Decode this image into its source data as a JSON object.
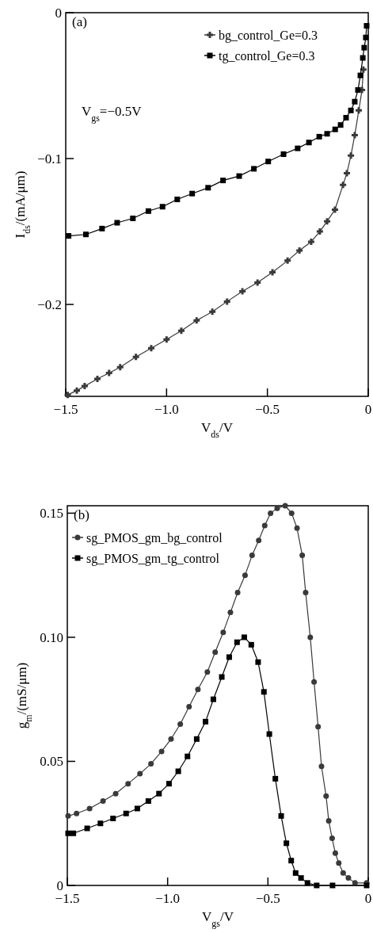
{
  "chart_data": [
    {
      "type": "line",
      "xlabel": "V$_{ds}$/V",
      "ylabel": "I$_{ds}$/(mA/μm)",
      "annotations": [
        "(a)",
        "V$_{gs}$=−0.5V"
      ],
      "xlim": [
        -1.5,
        0
      ],
      "ylim": [
        -0.263,
        0
      ],
      "xticks": [
        {
          "value": -1.5,
          "label": "−1.5"
        },
        {
          "value": -1.0,
          "label": "−1.0"
        },
        {
          "value": -0.5,
          "label": "−0.5"
        },
        {
          "value": 0,
          "label": "0"
        }
      ],
      "yticks": [
        {
          "value": 0,
          "label": "0"
        },
        {
          "value": -0.1,
          "label": "−0.1"
        },
        {
          "value": -0.2,
          "label": "−0.2"
        }
      ],
      "legend": "top right",
      "grid": false,
      "line_style": "solid",
      "series": [
        {
          "name": "bg_control_Ge=0.3",
          "color": "#3a3a3a",
          "marker": "cross",
          "x": [
            -1.49,
            -1.445,
            -1.406,
            -1.343,
            -1.285,
            -1.23,
            -1.152,
            -1.076,
            -1.0,
            -0.927,
            -0.851,
            -0.773,
            -0.7,
            -0.624,
            -0.549,
            -0.475,
            -0.4,
            -0.341,
            -0.283,
            -0.24,
            -0.204,
            -0.165,
            -0.125,
            -0.106,
            -0.086,
            -0.067,
            -0.047,
            -0.031,
            -0.024
          ],
          "values": [
            -0.262,
            -0.259,
            -0.256,
            -0.251,
            -0.247,
            -0.243,
            -0.236,
            -0.23,
            -0.224,
            -0.218,
            -0.211,
            -0.205,
            -0.198,
            -0.191,
            -0.185,
            -0.178,
            -0.17,
            -0.163,
            -0.157,
            -0.15,
            -0.143,
            -0.135,
            -0.118,
            -0.11,
            -0.098,
            -0.084,
            -0.067,
            -0.053,
            -0.039
          ]
        },
        {
          "name": "tg_control_Ge=0.3",
          "color": "#000000",
          "marker": "square",
          "x": [
            -1.486,
            -1.4,
            -1.32,
            -1.245,
            -1.167,
            -1.09,
            -1.02,
            -0.947,
            -0.873,
            -0.794,
            -0.72,
            -0.64,
            -0.567,
            -0.496,
            -0.42,
            -0.35,
            -0.294,
            -0.243,
            -0.204,
            -0.164,
            -0.137,
            -0.11,
            -0.086,
            -0.067,
            -0.051,
            -0.039,
            -0.027,
            -0.02,
            -0.012,
            -0.008
          ],
          "values": [
            -0.153,
            -0.152,
            -0.148,
            -0.144,
            -0.141,
            -0.136,
            -0.133,
            -0.128,
            -0.124,
            -0.12,
            -0.115,
            -0.112,
            -0.107,
            -0.102,
            -0.097,
            -0.093,
            -0.089,
            -0.085,
            -0.083,
            -0.08,
            -0.077,
            -0.072,
            -0.067,
            -0.061,
            -0.053,
            -0.043,
            -0.031,
            -0.024,
            -0.017,
            -0.009
          ]
        }
      ]
    },
    {
      "type": "line",
      "xlabel": "V$_{gs}$/V",
      "ylabel": "g$_{m}$/(mS/μm)",
      "annotations": [
        "(b)"
      ],
      "xlim": [
        -1.5,
        0
      ],
      "ylim": [
        0,
        0.153
      ],
      "xticks": [
        {
          "value": -1.5,
          "label": "−1.5"
        },
        {
          "value": -1.0,
          "label": "−1.0"
        },
        {
          "value": -0.5,
          "label": "−0.5"
        },
        {
          "value": 0,
          "label": "0"
        }
      ],
      "yticks": [
        {
          "value": 0,
          "label": "0"
        },
        0.05,
        {
          "value": 0.1,
          "label": "0.10"
        },
        0.15
      ],
      "legend": "top left",
      "grid": false,
      "line_style": "solid",
      "series": [
        {
          "name": "sg_PMOS_gm_bg_control",
          "color": "#3a3a3a",
          "marker": "circle",
          "x": [
            -1.496,
            -1.454,
            -1.389,
            -1.322,
            -1.259,
            -1.197,
            -1.138,
            -1.083,
            -1.03,
            -0.983,
            -0.937,
            -0.893,
            -0.849,
            -0.802,
            -0.763,
            -0.723,
            -0.687,
            -0.651,
            -0.614,
            -0.579,
            -0.546,
            -0.516,
            -0.487,
            -0.454,
            -0.414,
            -0.382,
            -0.355,
            -0.329,
            -0.312,
            -0.289,
            -0.27,
            -0.25,
            -0.233,
            -0.21,
            -0.197,
            -0.18,
            -0.164,
            -0.147,
            -0.125,
            -0.099,
            -0.066,
            -0.008
          ],
          "values": [
            0.028,
            0.029,
            0.031,
            0.034,
            0.037,
            0.041,
            0.045,
            0.049,
            0.054,
            0.059,
            0.065,
            0.072,
            0.079,
            0.086,
            0.094,
            0.102,
            0.11,
            0.118,
            0.125,
            0.133,
            0.139,
            0.145,
            0.15,
            0.152,
            0.153,
            0.15,
            0.144,
            0.133,
            0.118,
            0.1,
            0.082,
            0.064,
            0.048,
            0.036,
            0.026,
            0.019,
            0.013,
            0.009,
            0.005,
            0.003,
            0.001,
            0.001
          ]
        },
        {
          "name": "sg_PMOS_gm_tg_control",
          "color": "#000000",
          "marker": "square",
          "x": [
            -1.496,
            -1.47,
            -1.401,
            -1.335,
            -1.272,
            -1.207,
            -1.151,
            -1.096,
            -1.043,
            -0.993,
            -0.947,
            -0.901,
            -0.855,
            -0.811,
            -0.772,
            -0.73,
            -0.693,
            -0.654,
            -0.618,
            -0.583,
            -0.549,
            -0.52,
            -0.493,
            -0.463,
            -0.434,
            -0.408,
            -0.384,
            -0.362,
            -0.335,
            -0.303,
            -0.257,
            -0.178,
            -0.008
          ],
          "values": [
            0.021,
            0.021,
            0.023,
            0.025,
            0.027,
            0.029,
            0.031,
            0.034,
            0.037,
            0.041,
            0.046,
            0.052,
            0.059,
            0.066,
            0.075,
            0.084,
            0.092,
            0.098,
            0.1,
            0.097,
            0.09,
            0.078,
            0.061,
            0.043,
            0.028,
            0.017,
            0.01,
            0.005,
            0.003,
            0.001,
            0.0,
            0.0,
            0.0
          ]
        }
      ]
    }
  ]
}
